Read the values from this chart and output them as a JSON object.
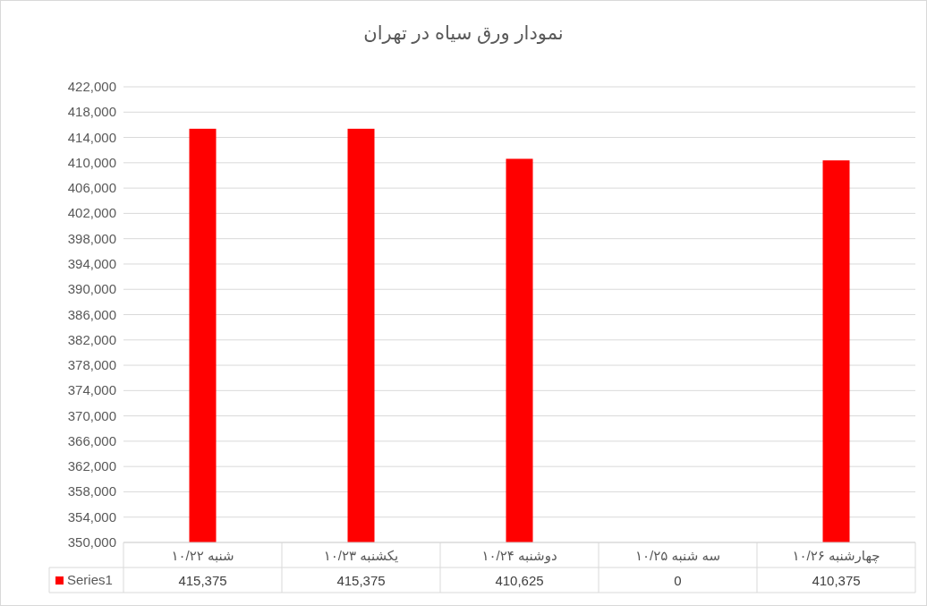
{
  "chart_data": {
    "type": "bar",
    "title": "نمودار ورق سیاه در تهران",
    "categories": [
      "۱۰/۲۲ شنبه",
      "۱۰/۲۳ یکشنبه",
      "۱۰/۲۴ دوشنبه",
      "۱۰/۲۵ سه شنبه",
      "۱۰/۲۶ چهارشنبه"
    ],
    "series": [
      {
        "name": "Series1",
        "color": "#ff0000",
        "values": [
          415375,
          415375,
          410625,
          null,
          410375
        ],
        "value_labels": [
          "415,375",
          "415,375",
          "410,625",
          "0",
          "410,375"
        ]
      }
    ],
    "ylim": [
      350000,
      422000
    ],
    "yticks": [
      {
        "value": 350000,
        "label": "350,000"
      },
      {
        "value": 354000,
        "label": "354,000"
      },
      {
        "value": 358000,
        "label": "358,000"
      },
      {
        "value": 362000,
        "label": "362,000"
      },
      {
        "value": 366000,
        "label": "366,000"
      },
      {
        "value": 370000,
        "label": "370,000"
      },
      {
        "value": 374000,
        "label": "374,000"
      },
      {
        "value": 378000,
        "label": "378,000"
      },
      {
        "value": 382000,
        "label": "382,000"
      },
      {
        "value": 386000,
        "label": "386,000"
      },
      {
        "value": 390000,
        "label": "390,000"
      },
      {
        "value": 394000,
        "label": "394,000"
      },
      {
        "value": 398000,
        "label": "398,000"
      },
      {
        "value": 402000,
        "label": "402,000"
      },
      {
        "value": 406000,
        "label": "406,000"
      },
      {
        "value": 410000,
        "label": "410,000"
      },
      {
        "value": 414000,
        "label": "414,000"
      },
      {
        "value": 418000,
        "label": "418,000"
      },
      {
        "value": 422000,
        "label": "422,000"
      }
    ],
    "grid": "y",
    "legend": "bottom"
  }
}
